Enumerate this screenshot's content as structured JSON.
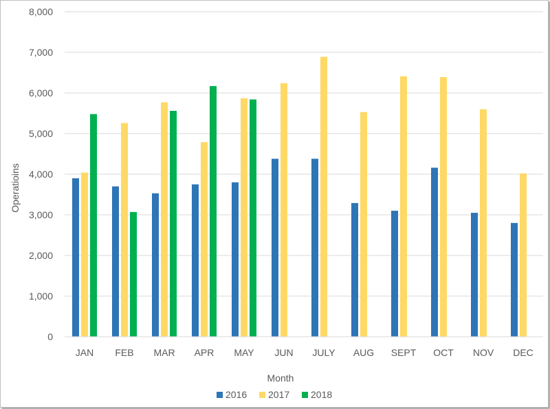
{
  "chart_data": {
    "type": "bar",
    "title": "",
    "xlabel": "Month",
    "ylabel": "Operatioins",
    "ylim": [
      0,
      8000
    ],
    "yticks": [
      0,
      1000,
      2000,
      3000,
      4000,
      5000,
      6000,
      7000,
      8000
    ],
    "ytick_labels": [
      "0",
      "1,000",
      "2,000",
      "3,000",
      "4,000",
      "5,000",
      "6,000",
      "7,000",
      "8,000"
    ],
    "grid": true,
    "legend_position": "bottom",
    "categories": [
      "JAN",
      "FEB",
      "MAR",
      "APR",
      "MAY",
      "JUN",
      "JULY",
      "AUG",
      "SEPT",
      "OCT",
      "NOV",
      "DEC"
    ],
    "series": [
      {
        "name": "2016",
        "color": "#2e75b6",
        "values": [
          3900,
          3700,
          3530,
          3750,
          3800,
          4380,
          4380,
          3290,
          3100,
          4160,
          3050,
          2800
        ]
      },
      {
        "name": "2017",
        "color": "#ffd966",
        "values": [
          4040,
          5260,
          5770,
          4790,
          5870,
          6240,
          6890,
          5530,
          6410,
          6390,
          5600,
          4020
        ]
      },
      {
        "name": "2018",
        "color": "#00b050",
        "values": [
          5480,
          3070,
          5560,
          6170,
          5840,
          null,
          null,
          null,
          null,
          null,
          null,
          null
        ]
      }
    ]
  }
}
